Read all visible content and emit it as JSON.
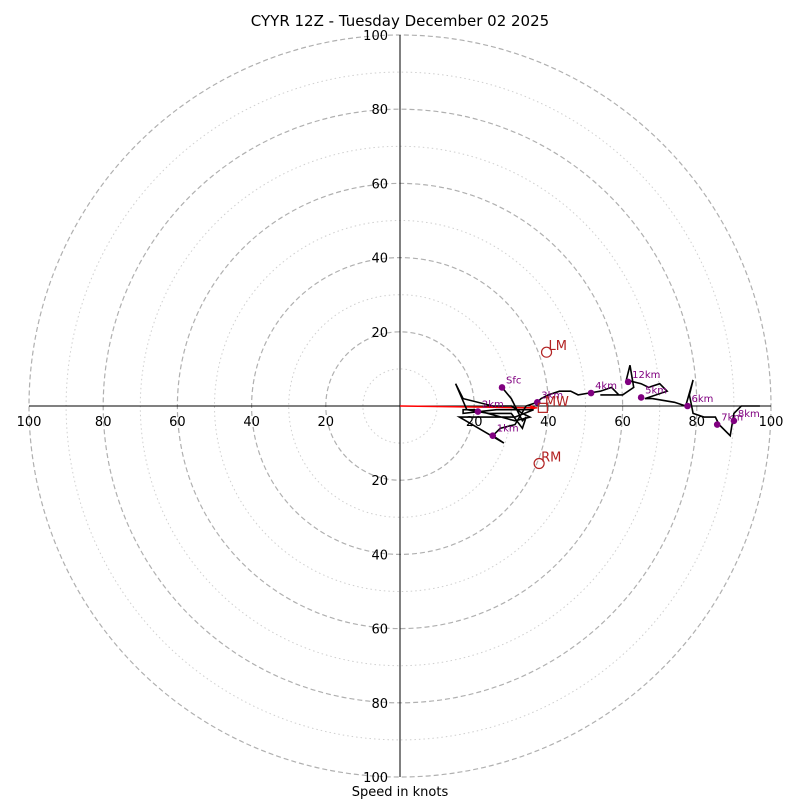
{
  "chart_data": {
    "type": "line",
    "subtype": "hodograph",
    "title": "CYYR 12Z - Tuesday December 02 2025",
    "xlabel": "Speed in knots",
    "units": "knots",
    "axis_range": [
      -100,
      100
    ],
    "ring_labels": [
      "100",
      "80",
      "60",
      "40",
      "20",
      "20",
      "40",
      "60",
      "80",
      "100"
    ],
    "major_rings": [
      20,
      40,
      60,
      80,
      100
    ],
    "minor_rings": [
      10,
      30,
      50,
      70,
      90
    ],
    "colors": {
      "trace": "#000000",
      "height_markers": "#800080",
      "storm_motion": "#b22222",
      "mean_wind_vector": "#ff0000",
      "major_ring": "#b0b0b0",
      "minor_ring": "#cfcfcf"
    },
    "hodograph_trace": [
      [
        27.5,
        5
      ],
      [
        30,
        2
      ],
      [
        31,
        0
      ],
      [
        32,
        -2
      ],
      [
        33,
        -4
      ],
      [
        34,
        -3
      ],
      [
        33,
        -6
      ],
      [
        30,
        -2
      ],
      [
        24,
        -2
      ],
      [
        18,
        -1
      ],
      [
        15,
        6
      ],
      [
        17,
        2
      ],
      [
        25,
        0
      ],
      [
        30,
        0
      ],
      [
        33,
        -2
      ],
      [
        35,
        -3
      ],
      [
        31,
        -4
      ],
      [
        20,
        -1
      ],
      [
        17,
        -1
      ],
      [
        17,
        -2
      ],
      [
        26,
        -1
      ],
      [
        36,
        -1
      ],
      [
        31,
        -3
      ],
      [
        16,
        -3
      ],
      [
        28,
        -10
      ],
      [
        25,
        -8
      ],
      [
        27,
        -6
      ],
      [
        31,
        -5
      ],
      [
        34,
        0
      ],
      [
        37,
        1
      ],
      [
        38,
        2
      ],
      [
        40,
        3
      ],
      [
        43,
        4
      ],
      [
        46,
        4
      ],
      [
        48,
        3
      ],
      [
        51,
        3.5
      ],
      [
        54,
        4
      ],
      [
        57,
        5
      ],
      [
        59,
        3
      ],
      [
        54,
        3
      ],
      [
        60,
        3
      ],
      [
        63,
        5
      ],
      [
        62,
        11
      ],
      [
        61,
        7
      ],
      [
        65,
        6
      ],
      [
        67,
        5
      ],
      [
        70,
        6
      ],
      [
        72,
        4
      ],
      [
        66,
        2
      ],
      [
        68,
        2
      ],
      [
        74,
        1
      ],
      [
        77,
        0
      ],
      [
        79,
        7
      ],
      [
        78,
        3
      ],
      [
        79,
        -2
      ],
      [
        82,
        -3
      ],
      [
        85,
        -3
      ],
      [
        86,
        -5
      ],
      [
        89,
        -8
      ],
      [
        90,
        -2
      ],
      [
        92,
        0
      ],
      [
        97,
        0
      ]
    ],
    "height_markers": [
      {
        "label": "Sfc",
        "u": 27.5,
        "v": 5
      },
      {
        "label": "1km",
        "u": 25,
        "v": -8
      },
      {
        "label": "2km",
        "u": 21,
        "v": -1.5
      },
      {
        "label": "3km",
        "u": 37,
        "v": 1
      },
      {
        "label": "4km",
        "u": 51.5,
        "v": 3.5
      },
      {
        "label": "5km",
        "u": 65,
        "v": 2.3
      },
      {
        "label": "6km",
        "u": 77.5,
        "v": 0
      },
      {
        "label": "7km",
        "u": 85.5,
        "v": -5
      },
      {
        "label": "8km",
        "u": 90,
        "v": -4
      },
      {
        "label": "12km",
        "u": 61.5,
        "v": 6.5
      }
    ],
    "storm_motion": [
      {
        "label": "LM",
        "u": 39.5,
        "v": 14.5,
        "marker": "circle"
      },
      {
        "label": "RM",
        "u": 37.5,
        "v": -15.5,
        "marker": "circle"
      },
      {
        "label": "MW",
        "u": 38.5,
        "v": -0.5,
        "marker": "square"
      }
    ],
    "mean_wind_vector": {
      "from": [
        0,
        0
      ],
      "to": [
        37,
        -0.5
      ]
    }
  }
}
